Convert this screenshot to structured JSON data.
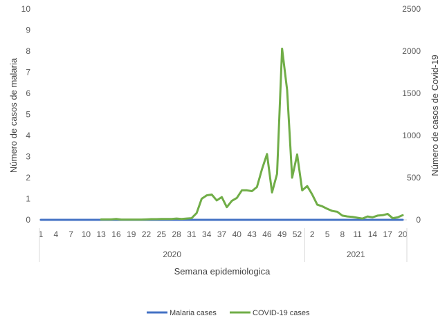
{
  "chart_data": {
    "type": "line",
    "xlabel": "Semana epidemiologica",
    "ylabel_left": "Número de casos de malaria",
    "ylabel_right": "Número de casos de Covid-19",
    "ylim_left": [
      0,
      10
    ],
    "ylim_right": [
      0,
      2500
    ],
    "yticks_left": [
      "0",
      "1",
      "2",
      "3",
      "4",
      "5",
      "6",
      "7",
      "8",
      "9",
      "10"
    ],
    "yticks_right": [
      "0",
      "500",
      "1000",
      "1500",
      "2000",
      "2500"
    ],
    "grid": false,
    "legend_position": "bottom",
    "years": [
      {
        "label": "2020",
        "weeks": 53
      },
      {
        "label": "2021",
        "weeks": 20
      }
    ],
    "x_tick_labels": [
      {
        "i": 0,
        "label": "1"
      },
      {
        "i": 3,
        "label": "4"
      },
      {
        "i": 6,
        "label": "7"
      },
      {
        "i": 9,
        "label": "10"
      },
      {
        "i": 12,
        "label": "13"
      },
      {
        "i": 15,
        "label": "16"
      },
      {
        "i": 18,
        "label": "19"
      },
      {
        "i": 21,
        "label": "22"
      },
      {
        "i": 24,
        "label": "25"
      },
      {
        "i": 27,
        "label": "28"
      },
      {
        "i": 30,
        "label": "31"
      },
      {
        "i": 33,
        "label": "34"
      },
      {
        "i": 36,
        "label": "37"
      },
      {
        "i": 39,
        "label": "40"
      },
      {
        "i": 42,
        "label": "43"
      },
      {
        "i": 45,
        "label": "46"
      },
      {
        "i": 48,
        "label": "49"
      },
      {
        "i": 51,
        "label": "52"
      },
      {
        "i": 54,
        "label": "2"
      },
      {
        "i": 57,
        "label": "5"
      },
      {
        "i": 60,
        "label": "8"
      },
      {
        "i": 63,
        "label": "11"
      },
      {
        "i": 66,
        "label": "14"
      },
      {
        "i": 69,
        "label": "17"
      },
      {
        "i": 72,
        "label": "20"
      }
    ],
    "series": [
      {
        "name": "Malaria cases",
        "axis": "left",
        "color": "#4472C4",
        "values": [
          0,
          0,
          0,
          0,
          0,
          0,
          0,
          0,
          0,
          0,
          0,
          0,
          0,
          0,
          0,
          0,
          0,
          0,
          0,
          0,
          0,
          0,
          0,
          0,
          0,
          0,
          0,
          0,
          0,
          0,
          0,
          0,
          0,
          0,
          0,
          0,
          0,
          0,
          0,
          0,
          0,
          0,
          0,
          0,
          0,
          0,
          0,
          0,
          0,
          0,
          0,
          0,
          0,
          0,
          0,
          0,
          0,
          0,
          0,
          0,
          0,
          0,
          0,
          0,
          0,
          0,
          0,
          0,
          0,
          0,
          0,
          0,
          0
        ]
      },
      {
        "name": "COVID-19 cases",
        "axis": "right",
        "color": "#70AD47",
        "values": [
          null,
          null,
          null,
          null,
          null,
          null,
          null,
          null,
          null,
          null,
          null,
          null,
          5,
          5,
          5,
          10,
          3,
          3,
          3,
          3,
          3,
          5,
          8,
          8,
          10,
          10,
          10,
          15,
          10,
          15,
          20,
          80,
          250,
          290,
          300,
          230,
          270,
          150,
          225,
          260,
          350,
          350,
          340,
          390,
          600,
          780,
          325,
          545,
          2030,
          1540,
          500,
          775,
          350,
          400,
          300,
          180,
          160,
          130,
          105,
          95,
          50,
          40,
          35,
          25,
          15,
          40,
          30,
          50,
          55,
          70,
          20,
          30,
          55
        ]
      }
    ]
  }
}
